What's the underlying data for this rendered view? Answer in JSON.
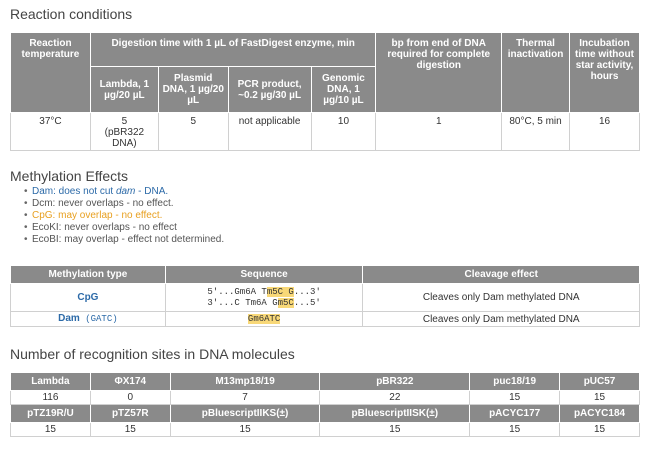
{
  "section1": {
    "title": "Reaction conditions",
    "headers": {
      "reaction_temp": "Reaction temperature",
      "digestion_time": "Digestion time with 1 µL of FastDigest enzyme, min",
      "bp_end": "bp from end of DNA required for complete digestion",
      "thermal": "Thermal inactivation",
      "incubation": "Incubation time without star activity, hours",
      "sub": [
        "Lambda, 1 µg/20 µL",
        "Plasmid DNA, 1 µg/20 µL",
        "PCR product, ~0.2 µg/30 µL",
        "Genomic DNA, 1 µg/10 µL"
      ]
    },
    "row": {
      "temp": "37°C",
      "lambda": "5",
      "lambda_note": "(pBR322 DNA)",
      "plasmid": "5",
      "pcr": "not applicable",
      "genomic": "10",
      "bp": "1",
      "thermal": "80°C, 5 min",
      "incubation": "16"
    }
  },
  "section2": {
    "title": "Methylation Effects",
    "items": [
      {
        "prefix": "Dam: does not cut ",
        "em": "dam",
        "suffix": " - DNA."
      },
      {
        "text": "Dcm: never overlaps - no effect."
      },
      {
        "text": "CpG: may overlap - no effect."
      },
      {
        "text": "EcoKI: never overlaps - no effect"
      },
      {
        "text": "EcoBI: may overlap - effect not determined."
      }
    ],
    "table": {
      "headers": [
        "Methylation type",
        "Sequence",
        "Cleavage effect"
      ],
      "rows": [
        {
          "type": "CpG",
          "seq1_a": "5'...Gm6A T",
          "seq1_hl": "m5C G",
          "seq1_b": "...3'",
          "seq2_a": "3'...C Tm6A G",
          "seq2_hl": "m5C",
          "seq2_b": "...5'",
          "effect": "Cleaves only Dam methylated DNA"
        },
        {
          "type": "Dam",
          "type_note": " (GATC)",
          "seq": "Gm6ATC",
          "effect": "Cleaves only Dam methylated DNA"
        }
      ]
    }
  },
  "section3": {
    "title": "Number of recognition sites in DNA molecules",
    "row1_headers": [
      "Lambda",
      "ΦX174",
      "M13mp18/19",
      "pBR322",
      "puc18/19",
      "pUC57"
    ],
    "row1_values": [
      "116",
      "0",
      "7",
      "22",
      "15",
      "15"
    ],
    "row2_headers": [
      "pTZ19R/U",
      "pTZ57R",
      "pBluescriptIIKS(±)",
      "pBluescriptIISK(±)",
      "pACYC177",
      "pACYC184"
    ],
    "row2_values": [
      "15",
      "15",
      "15",
      "15",
      "15",
      "15"
    ]
  }
}
